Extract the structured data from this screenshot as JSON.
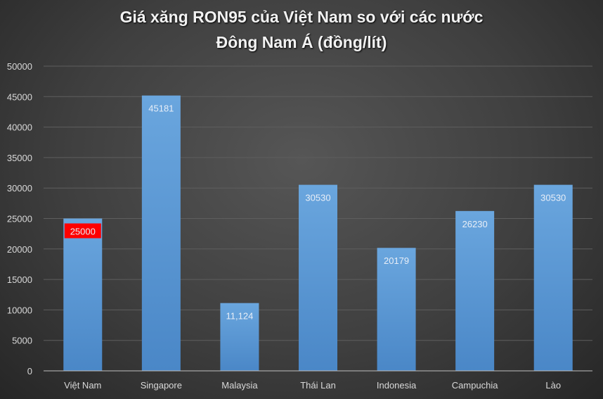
{
  "chart_data": {
    "type": "bar",
    "title_line1": "Giá xăng RON95 của Việt Nam so với các nước",
    "title_line2": "Đông Nam Á (đồng/lít)",
    "xlabel": "",
    "ylabel": "",
    "categories": [
      "Việt Nam",
      "Singapore",
      "Malaysia",
      "Thái Lan",
      "Indonesia",
      "Campuchia",
      "Lào"
    ],
    "values": [
      25000,
      45181,
      11124,
      30530,
      20179,
      26230,
      30530
    ],
    "data_labels": [
      "25000",
      "45181",
      "11,124",
      "30530",
      "20179",
      "26230",
      "30530"
    ],
    "highlight_index": 0,
    "ylim": [
      0,
      50000
    ],
    "yticks": [
      0,
      5000,
      10000,
      15000,
      20000,
      25000,
      30000,
      35000,
      40000,
      45000,
      50000
    ],
    "grid": true,
    "legend": "none",
    "colors": {
      "bar": "#5b9bd5",
      "highlight_label_bg": "#ff0000",
      "grid": "#5e5e5e",
      "axis": "#bfbfbf"
    }
  }
}
